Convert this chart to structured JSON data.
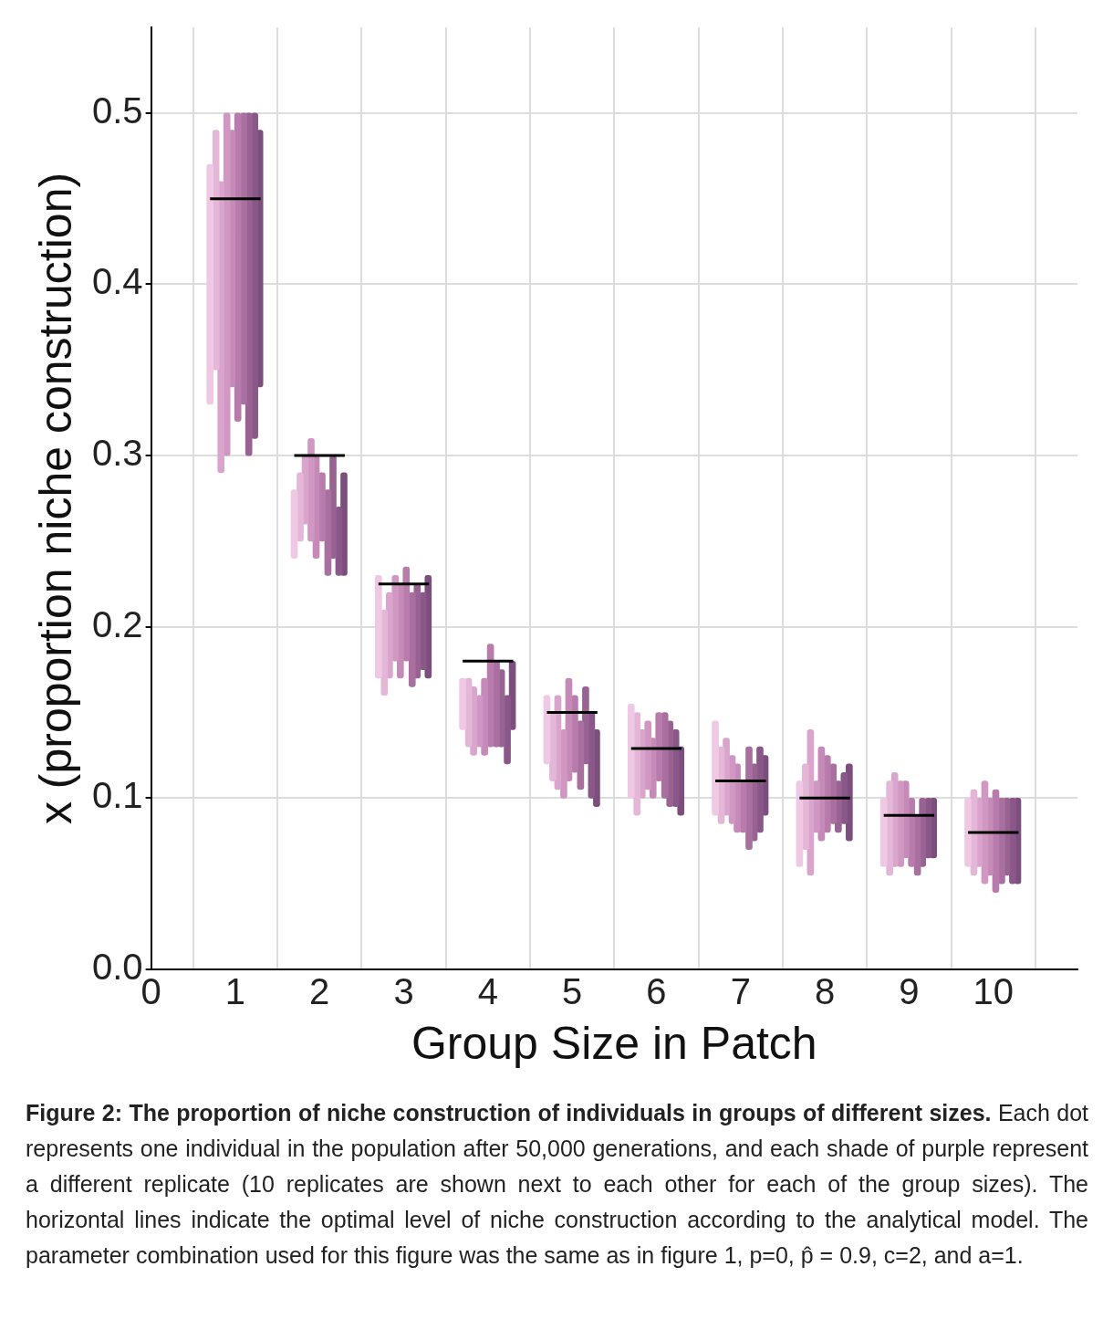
{
  "chart_data": {
    "type": "bar",
    "xlabel": "Group Size in Patch",
    "ylabel": "x (proportion niche construction)",
    "xlim": [
      0,
      11
    ],
    "xticks": [
      0,
      1,
      2,
      3,
      4,
      5,
      6,
      7,
      8,
      9,
      10
    ],
    "ylim": [
      0,
      0.55
    ],
    "yticks": [
      {
        "value": 0,
        "label": "0.0"
      },
      0.1,
      0.2,
      0.3,
      0.4,
      0.5
    ],
    "grid": true,
    "legend": false,
    "series": [
      {
        "color": "#efc8e4",
        "x": [
          0.7,
          1.7,
          2.7,
          3.7,
          4.7,
          5.7,
          6.7,
          7.7,
          8.7,
          9.7
        ],
        "base": [
          0.33,
          0.24,
          0.17,
          0.14,
          0.12,
          0.1,
          0.09,
          0.06,
          0.06,
          0.06
        ],
        "values": [
          0.14,
          0.04,
          0.06,
          0.03,
          0.04,
          0.055,
          0.055,
          0.05,
          0.04,
          0.04
        ]
      },
      {
        "color": "#e4b6d7",
        "x": [
          0.77,
          1.77,
          2.77,
          3.77,
          4.77,
          5.77,
          6.77,
          7.77,
          8.77,
          9.77
        ],
        "base": [
          0.35,
          0.25,
          0.16,
          0.13,
          0.11,
          0.09,
          0.085,
          0.07,
          0.055,
          0.055
        ],
        "values": [
          0.14,
          0.04,
          0.05,
          0.04,
          0.04,
          0.06,
          0.045,
          0.05,
          0.055,
          0.05
        ]
      },
      {
        "color": "#d9a5cc",
        "x": [
          0.83,
          1.83,
          2.83,
          3.83,
          4.83,
          5.83,
          6.83,
          7.83,
          8.83,
          9.83
        ],
        "base": [
          0.29,
          0.26,
          0.17,
          0.125,
          0.105,
          0.1,
          0.09,
          0.055,
          0.06,
          0.06
        ],
        "values": [
          0.17,
          0.04,
          0.05,
          0.04,
          0.055,
          0.04,
          0.045,
          0.085,
          0.055,
          0.04
        ]
      },
      {
        "color": "#cf97c2",
        "x": [
          0.9,
          1.9,
          2.9,
          3.9,
          4.9,
          5.9,
          6.9,
          7.9,
          8.9,
          9.9
        ],
        "base": [
          0.3,
          0.25,
          0.18,
          0.13,
          0.1,
          0.105,
          0.085,
          0.08,
          0.06,
          0.05
        ],
        "values": [
          0.2,
          0.06,
          0.05,
          0.03,
          0.04,
          0.04,
          0.04,
          0.03,
          0.05,
          0.06
        ]
      },
      {
        "color": "#c58ab8",
        "x": [
          0.96,
          1.96,
          2.96,
          3.96,
          4.96,
          5.96,
          6.96,
          7.96,
          8.96,
          9.96
        ],
        "base": [
          0.34,
          0.24,
          0.17,
          0.125,
          0.11,
          0.1,
          0.08,
          0.075,
          0.065,
          0.055
        ],
        "values": [
          0.15,
          0.06,
          0.055,
          0.045,
          0.06,
          0.035,
          0.04,
          0.055,
          0.045,
          0.045
        ]
      },
      {
        "color": "#b77cab",
        "x": [
          1.03,
          2.03,
          3.03,
          4.03,
          5.03,
          6.03,
          7.03,
          8.03,
          9.03,
          10.03
        ],
        "base": [
          0.32,
          0.25,
          0.18,
          0.13,
          0.115,
          0.11,
          0.08,
          0.08,
          0.06,
          0.045
        ],
        "values": [
          0.18,
          0.04,
          0.055,
          0.06,
          0.045,
          0.04,
          0.03,
          0.045,
          0.04,
          0.06
        ]
      },
      {
        "color": "#a86f9f",
        "x": [
          1.1,
          2.1,
          3.1,
          4.1,
          5.1,
          6.1,
          7.1,
          8.1,
          9.1,
          10.1
        ],
        "base": [
          0.33,
          0.23,
          0.165,
          0.13,
          0.105,
          0.1,
          0.07,
          0.085,
          0.055,
          0.05
        ],
        "values": [
          0.17,
          0.05,
          0.055,
          0.05,
          0.04,
          0.05,
          0.06,
          0.035,
          0.035,
          0.05
        ]
      },
      {
        "color": "#986393",
        "x": [
          1.16,
          2.16,
          3.16,
          4.16,
          5.16,
          6.16,
          7.16,
          8.16,
          9.16,
          10.16
        ],
        "base": [
          0.3,
          0.24,
          0.17,
          0.13,
          0.12,
          0.095,
          0.075,
          0.08,
          0.06,
          0.055
        ],
        "values": [
          0.2,
          0.06,
          0.055,
          0.045,
          0.045,
          0.05,
          0.045,
          0.03,
          0.04,
          0.045
        ]
      },
      {
        "color": "#8a5888",
        "x": [
          1.23,
          2.23,
          3.23,
          4.23,
          5.23,
          6.23,
          7.23,
          8.23,
          9.23,
          10.23
        ],
        "base": [
          0.31,
          0.23,
          0.175,
          0.12,
          0.1,
          0.095,
          0.08,
          0.085,
          0.065,
          0.05
        ],
        "values": [
          0.19,
          0.04,
          0.045,
          0.04,
          0.05,
          0.045,
          0.05,
          0.03,
          0.035,
          0.05
        ]
      },
      {
        "color": "#7c4e7d",
        "x": [
          1.29,
          2.29,
          3.29,
          4.29,
          5.29,
          6.29,
          7.29,
          8.29,
          9.29,
          10.29
        ],
        "base": [
          0.34,
          0.23,
          0.17,
          0.14,
          0.095,
          0.09,
          0.09,
          0.075,
          0.065,
          0.05
        ],
        "values": [
          0.15,
          0.06,
          0.06,
          0.04,
          0.045,
          0.04,
          0.035,
          0.045,
          0.035,
          0.05
        ]
      },
      {
        "type": "line",
        "color": "#000000",
        "x": [
          0.7,
          1.3
        ],
        "values": [
          0.45,
          0.45
        ]
      },
      {
        "type": "line",
        "color": "#000000",
        "x": [
          1.7,
          2.3
        ],
        "values": [
          0.3,
          0.3
        ]
      },
      {
        "type": "line",
        "color": "#000000",
        "x": [
          2.7,
          3.3
        ],
        "values": [
          0.225,
          0.225
        ]
      },
      {
        "type": "line",
        "color": "#000000",
        "x": [
          3.7,
          4.3
        ],
        "values": [
          0.18,
          0.18
        ]
      },
      {
        "type": "line",
        "color": "#000000",
        "x": [
          4.7,
          5.3
        ],
        "values": [
          0.15,
          0.15
        ]
      },
      {
        "type": "line",
        "color": "#000000",
        "x": [
          5.7,
          6.3
        ],
        "values": [
          0.129,
          0.129
        ]
      },
      {
        "type": "line",
        "color": "#000000",
        "x": [
          6.7,
          7.3
        ],
        "values": [
          0.11,
          0.11
        ]
      },
      {
        "type": "line",
        "color": "#000000",
        "x": [
          7.7,
          8.3
        ],
        "values": [
          0.1,
          0.1
        ]
      },
      {
        "type": "line",
        "color": "#000000",
        "x": [
          8.7,
          9.3
        ],
        "values": [
          0.09,
          0.09
        ]
      },
      {
        "type": "line",
        "color": "#000000",
        "x": [
          9.7,
          10.3
        ],
        "values": [
          0.08,
          0.08
        ]
      }
    ],
    "annotations": [
      "Figure 2: The proportion of niche construction of individuals in groups of different sizes.",
      "Each dot represents one individual in the population after 50,000 generations, and each shade of purple represent a different replicate (10 replicates are shown next to each other for each of the group sizes). The horizontal lines indicate the optimal level of niche construction according to the analytical model. The parameter combination used for this figure was the same as in figure 1, p=0, p̂ = 0.9, c=2, and a=1."
    ]
  }
}
